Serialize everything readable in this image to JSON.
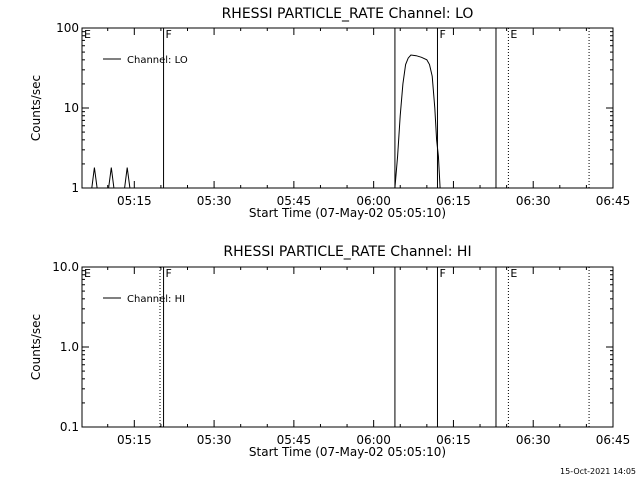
{
  "timestamp": "15-Oct-2021 14:05",
  "chart_data": [
    {
      "type": "line",
      "title": "RHESSI PARTICLE_RATE Channel: LO",
      "xlabel": "Start Time (07-May-02 05:05:10)",
      "ylabel": "Counts/sec",
      "y_scale": "log",
      "xlim_minutes": [
        "05:05:10",
        "06:45:00"
      ],
      "ylim": [
        1,
        100
      ],
      "x_ticks": [
        "05:15",
        "05:30",
        "05:45",
        "06:00",
        "06:15",
        "06:30",
        "06:45"
      ],
      "y_ticks": [
        "1",
        "10",
        "100"
      ],
      "legend": {
        "label": "Channel: LO",
        "position": "top-left"
      },
      "markers": [
        {
          "label": "E",
          "time": "05:05:10",
          "style": "none"
        },
        {
          "label": "F",
          "time": "05:20:30",
          "style": "solid"
        },
        {
          "label": "",
          "time": "06:04:00",
          "style": "solid"
        },
        {
          "label": "F",
          "time": "06:12:00",
          "style": "solid"
        },
        {
          "label": "",
          "time": "06:23:00",
          "style": "solid"
        },
        {
          "label": "E",
          "time": "06:25:20",
          "style": "dotted"
        },
        {
          "label": "",
          "time": "06:40:30",
          "style": "dotted"
        }
      ],
      "series": [
        {
          "name": "Channel: LO",
          "points": [
            [
              "05:07:00",
              1
            ],
            [
              "05:07:30",
              1.8
            ],
            [
              "05:08:00",
              1
            ],
            [
              "05:10:10",
              1
            ],
            [
              "05:10:40",
              1.8
            ],
            [
              "05:11:10",
              1
            ],
            [
              "05:13:10",
              1
            ],
            [
              "05:13:40",
              1.8
            ],
            [
              "05:14:10",
              1
            ],
            [
              "06:04:00",
              1
            ],
            [
              "06:04:30",
              2.5
            ],
            [
              "06:05:00",
              8
            ],
            [
              "06:05:30",
              20
            ],
            [
              "06:06:00",
              35
            ],
            [
              "06:06:30",
              42
            ],
            [
              "06:07:00",
              46
            ],
            [
              "06:08:00",
              45
            ],
            [
              "06:09:00",
              43
            ],
            [
              "06:10:00",
              40
            ],
            [
              "06:10:30",
              35
            ],
            [
              "06:11:00",
              25
            ],
            [
              "06:11:30",
              10
            ],
            [
              "06:11:50",
              4
            ],
            [
              "06:12:10",
              2.5
            ],
            [
              "06:12:30",
              1
            ]
          ]
        }
      ]
    },
    {
      "type": "line",
      "title": "RHESSI PARTICLE_RATE Channel: HI",
      "xlabel": "Start Time (07-May-02 05:05:10)",
      "ylabel": "Counts/sec",
      "y_scale": "log",
      "xlim_minutes": [
        "05:05:10",
        "06:45:00"
      ],
      "ylim": [
        0.1,
        10
      ],
      "x_ticks": [
        "05:15",
        "05:30",
        "05:45",
        "06:00",
        "06:15",
        "06:30",
        "06:45"
      ],
      "y_ticks": [
        "0.1",
        "1.0",
        "10.0"
      ],
      "legend": {
        "label": "Channel: HI",
        "position": "top-left"
      },
      "markers": [
        {
          "label": "E",
          "time": "05:05:10",
          "style": "none"
        },
        {
          "label": "",
          "time": "05:19:50",
          "style": "dotted"
        },
        {
          "label": "F",
          "time": "05:20:30",
          "style": "solid"
        },
        {
          "label": "",
          "time": "06:04:00",
          "style": "solid"
        },
        {
          "label": "F",
          "time": "06:12:00",
          "style": "solid"
        },
        {
          "label": "",
          "time": "06:23:00",
          "style": "solid"
        },
        {
          "label": "E",
          "time": "06:25:20",
          "style": "dotted"
        },
        {
          "label": "",
          "time": "06:40:30",
          "style": "dotted"
        }
      ],
      "series": [
        {
          "name": "Channel: HI",
          "points": []
        }
      ]
    }
  ]
}
